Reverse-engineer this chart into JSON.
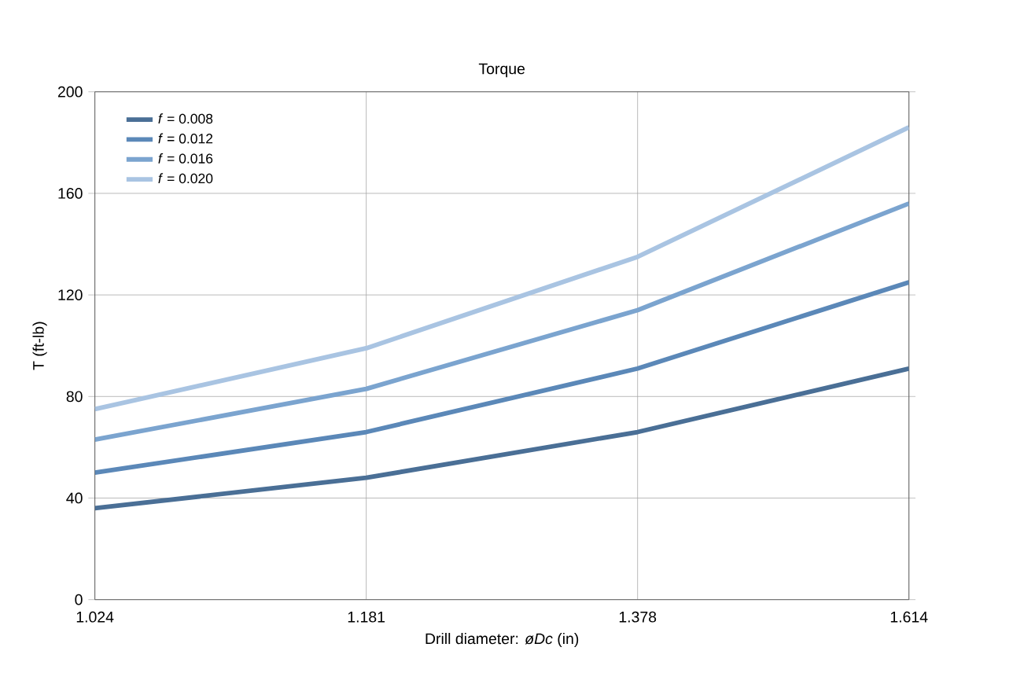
{
  "chart_data": {
    "type": "line",
    "title": "Torque",
    "xlabel": "Drill diameter: *øDc* (in)",
    "ylabel": "T (ft-lb)",
    "categories": [
      "1.024",
      "1.181",
      "1.378",
      "1.614"
    ],
    "series": [
      {
        "name": "*f* = 0.008",
        "color": "#4a6f96",
        "values": [
          36,
          48,
          66,
          91
        ]
      },
      {
        "name": "*f* = 0.012",
        "color": "#5b88b8",
        "values": [
          50,
          66,
          91,
          125
        ]
      },
      {
        "name": "*f* = 0.016",
        "color": "#7ba4cf",
        "values": [
          63,
          83,
          114,
          156
        ]
      },
      {
        "name": "*f* = 0.020",
        "color": "#a9c4e2",
        "values": [
          75,
          99,
          135,
          186
        ]
      }
    ],
    "ylim": [
      0,
      200
    ],
    "yticks": [
      0,
      40,
      80,
      120,
      160,
      200
    ],
    "grid": true,
    "legend": "top left",
    "marker": "none",
    "line_style": "solid"
  }
}
